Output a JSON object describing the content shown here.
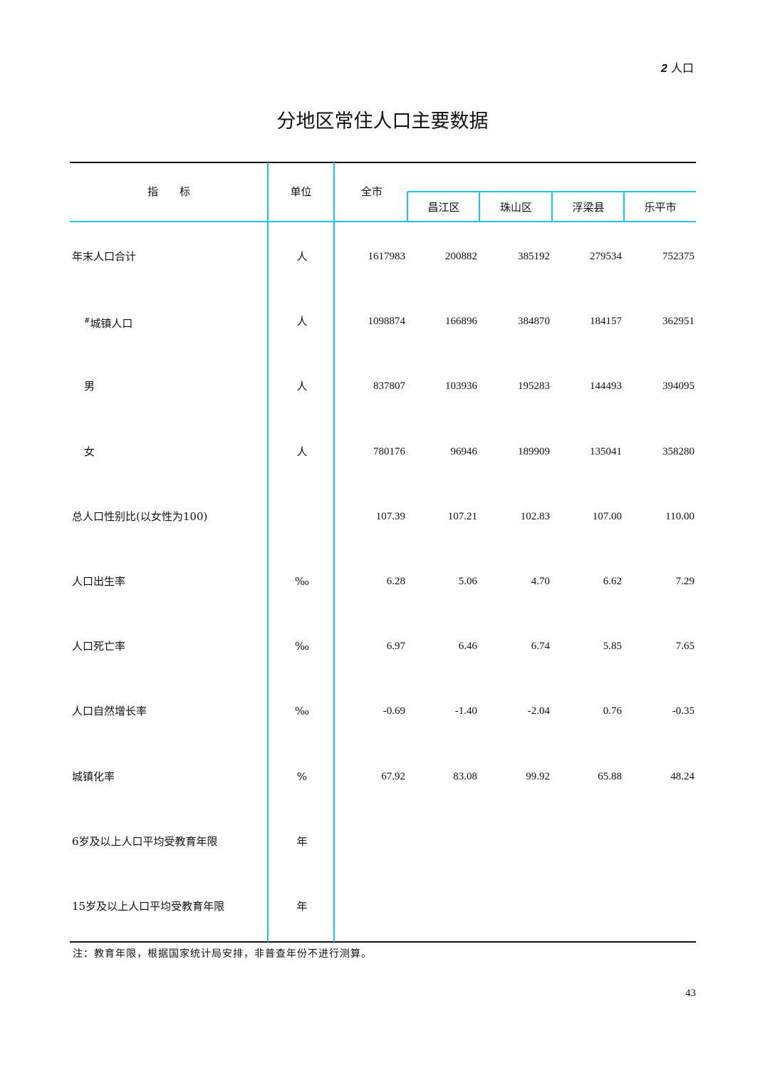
{
  "running_header": {
    "chapter_num": "2",
    "chapter_title": "人口"
  },
  "title": "分地区常住人口主要数据",
  "table": {
    "headers": {
      "indicator": "指　　标",
      "unit": "单位",
      "total": "全市",
      "districts": [
        "昌江区",
        "珠山区",
        "浮梁县",
        "乐平市"
      ]
    },
    "rows": [
      {
        "label": "年末人口合计",
        "prefix": "",
        "indent": false,
        "unit": "人",
        "values": [
          "1617983",
          "200882",
          "385192",
          "279534",
          "752375"
        ]
      },
      {
        "label": "城镇人口",
        "prefix": "#",
        "indent": true,
        "unit": "人",
        "values": [
          "1098874",
          "166896",
          "384870",
          "184157",
          "362951"
        ]
      },
      {
        "label": "男",
        "prefix": "",
        "indent": true,
        "unit": "人",
        "values": [
          "837807",
          "103936",
          "195283",
          "144493",
          "394095"
        ]
      },
      {
        "label": "女",
        "prefix": "",
        "indent": true,
        "unit": "人",
        "values": [
          "780176",
          "96946",
          "189909",
          "135041",
          "358280"
        ]
      },
      {
        "label": "总人口性别比(以女性为100)",
        "prefix": "",
        "indent": false,
        "unit": "",
        "values": [
          "107.39",
          "107.21",
          "102.83",
          "107.00",
          "110.00"
        ]
      },
      {
        "label": "人口出生率",
        "prefix": "",
        "indent": false,
        "unit": "‰",
        "values": [
          "6.28",
          "5.06",
          "4.70",
          "6.62",
          "7.29"
        ]
      },
      {
        "label": "人口死亡率",
        "prefix": "",
        "indent": false,
        "unit": "‰",
        "values": [
          "6.97",
          "6.46",
          "6.74",
          "5.85",
          "7.65"
        ]
      },
      {
        "label": "人口自然增长率",
        "prefix": "",
        "indent": false,
        "unit": "‰",
        "values": [
          "-0.69",
          "-1.40",
          "-2.04",
          "0.76",
          "-0.35"
        ]
      },
      {
        "label": "城镇化率",
        "prefix": "",
        "indent": false,
        "unit": "%",
        "values": [
          "67.92",
          "83.08",
          "99.92",
          "65.88",
          "48.24"
        ]
      },
      {
        "label": "6岁及以上人口平均受教育年限",
        "prefix": "",
        "indent": false,
        "unit": "年",
        "values": [
          "",
          "",
          "",
          "",
          ""
        ]
      },
      {
        "label": "15岁及以上人口平均受教育年限",
        "prefix": "",
        "indent": false,
        "unit": "年",
        "values": [
          "",
          "",
          "",
          "",
          ""
        ]
      }
    ]
  },
  "note": "注：教育年限，根据国家统计局安排，非普查年份不进行测算。",
  "page_number": "43",
  "colors": {
    "rule_accent": "#1ec6ee",
    "rule_main": "#111111"
  }
}
